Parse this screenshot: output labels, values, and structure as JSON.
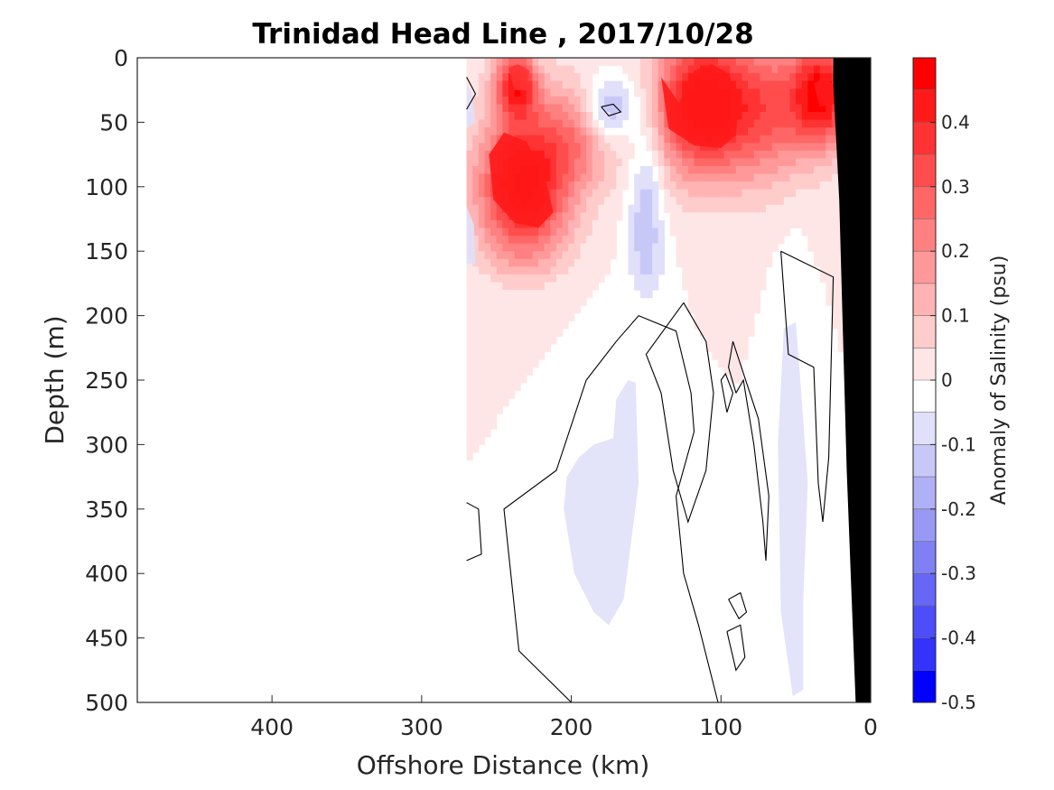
{
  "chart_data": {
    "type": "heatmap",
    "title": "Trinidad Head Line , 2017/10/28",
    "xlabel": "Offshore Distance (km)",
    "ylabel": "Depth (m)",
    "x_axis": {
      "range": [
        490,
        0
      ],
      "reversed": true,
      "ticks": [
        400,
        300,
        200,
        100,
        0
      ]
    },
    "y_axis": {
      "range": [
        0,
        500
      ],
      "reversed": true,
      "ticks": [
        0,
        50,
        100,
        150,
        200,
        250,
        300,
        350,
        400,
        450,
        500
      ]
    },
    "colorbar": {
      "label": "Anomaly of Salinity (psu)",
      "range": [
        -0.5,
        0.5
      ],
      "ticks": [
        "0.4",
        "0.3",
        "0.2",
        "0.1",
        "0",
        "-0.1",
        "-0.2",
        "-0.3",
        "-0.4",
        "-0.5"
      ],
      "tick_values": [
        0.4,
        0.3,
        0.2,
        0.1,
        0,
        -0.1,
        -0.2,
        -0.3,
        -0.4,
        -0.5
      ],
      "levels": [
        {
          "lo": 0.45,
          "hi": 0.5,
          "color": "#ff0000"
        },
        {
          "lo": 0.4,
          "hi": 0.45,
          "color": "#ff1a1a"
        },
        {
          "lo": 0.35,
          "hi": 0.4,
          "color": "#ff3333"
        },
        {
          "lo": 0.3,
          "hi": 0.35,
          "color": "#ff4d4d"
        },
        {
          "lo": 0.25,
          "hi": 0.3,
          "color": "#ff6666"
        },
        {
          "lo": 0.2,
          "hi": 0.25,
          "color": "#ff8080"
        },
        {
          "lo": 0.15,
          "hi": 0.2,
          "color": "#ff9999"
        },
        {
          "lo": 0.1,
          "hi": 0.15,
          "color": "#ffb3b3"
        },
        {
          "lo": 0.05,
          "hi": 0.1,
          "color": "#ffcccc"
        },
        {
          "lo": 0.0,
          "hi": 0.05,
          "color": "#ffe6e6"
        },
        {
          "lo": -0.05,
          "hi": 0.0,
          "color": "#ffffff"
        },
        {
          "lo": -0.1,
          "hi": -0.05,
          "color": "#e0e0fa"
        },
        {
          "lo": -0.15,
          "hi": -0.1,
          "color": "#c8c8f8"
        },
        {
          "lo": -0.2,
          "hi": -0.15,
          "color": "#b0b0f6"
        },
        {
          "lo": -0.25,
          "hi": -0.2,
          "color": "#9999f5"
        },
        {
          "lo": -0.3,
          "hi": -0.25,
          "color": "#8080f5"
        },
        {
          "lo": -0.35,
          "hi": -0.3,
          "color": "#6666f7"
        },
        {
          "lo": -0.4,
          "hi": -0.35,
          "color": "#4d4dfa"
        },
        {
          "lo": -0.45,
          "hi": -0.4,
          "color": "#3333fc"
        },
        {
          "lo": -0.5,
          "hi": -0.45,
          "color": "#0000ff"
        }
      ]
    },
    "data_extent_km": [
      270,
      0
    ],
    "bathymetry": {
      "color": "#000000",
      "x_km": [
        0,
        0,
        10,
        16,
        21,
        25,
        25
      ],
      "depth_m": [
        0,
        500,
        500,
        320,
        110,
        20,
        0
      ]
    },
    "features": [
      {
        "name": "salinity-max-nearshore-upper",
        "level": 0.4,
        "x_km": [
          140,
          128,
          118,
          106,
          95,
          88,
          90,
          100,
          118,
          135,
          140
        ],
        "depth_m": [
          15,
          35,
          10,
          5,
          12,
          35,
          60,
          70,
          68,
          55,
          15
        ]
      },
      {
        "name": "salinity-max-offshore-deep",
        "level": 0.4,
        "x_km": [
          255,
          245,
          230,
          218,
          212,
          222,
          238,
          252,
          255
        ],
        "depth_m": [
          75,
          58,
          65,
          90,
          120,
          132,
          128,
          110,
          75
        ]
      },
      {
        "name": "salinity-max-offshore-shallow",
        "level": 0.35,
        "x_km": [
          242,
          236,
          228,
          230,
          238,
          242
        ],
        "depth_m": [
          8,
          5,
          10,
          25,
          25,
          8
        ]
      },
      {
        "name": "salinity-max-coastal",
        "level": 0.4,
        "x_km": [
          38,
          30,
          22,
          25,
          34,
          38
        ],
        "depth_m": [
          20,
          15,
          25,
          35,
          38,
          20
        ]
      },
      {
        "name": "fresh-anomaly-offshore-mid",
        "level": -0.1,
        "x_km": [
          185,
          172,
          170,
          162,
          157,
          155,
          165,
          175,
          185,
          198,
          205,
          203,
          195,
          185
        ],
        "depth_m": [
          300,
          295,
          265,
          250,
          252,
          330,
          420,
          440,
          430,
          400,
          350,
          325,
          310,
          300
        ]
      },
      {
        "name": "fresh-anomaly-nearshore",
        "level": -0.1,
        "x_km": [
          58,
          50,
          47,
          42,
          45,
          45,
          52,
          60,
          62,
          58
        ],
        "depth_m": [
          210,
          205,
          250,
          330,
          420,
          490,
          495,
          430,
          300,
          210
        ]
      },
      {
        "name": "fresh-anomaly-west-edge-upper",
        "level": -0.1,
        "x_km": [
          270,
          266,
          264,
          270
        ],
        "depth_m": [
          20,
          30,
          50,
          55
        ]
      },
      {
        "name": "fresh-anomaly-west-edge-lower",
        "level": -0.1,
        "x_km": [
          270,
          265,
          264,
          270
        ],
        "depth_m": [
          115,
          130,
          160,
          160
        ]
      }
    ],
    "contour_lines": [
      {
        "name": "zero-contour-main",
        "level": 0,
        "x_km": [
          200,
          235,
          245,
          210,
          190,
          170,
          155,
          130,
          120,
          118,
          130,
          125,
          115,
          102
        ],
        "depth_m": [
          500,
          460,
          350,
          320,
          250,
          220,
          200,
          212,
          260,
          290,
          340,
          400,
          440,
          500
        ]
      },
      {
        "name": "zero-contour-central",
        "level": 0,
        "x_km": [
          125,
          110,
          105,
          110,
          122,
          132,
          140,
          150,
          125
        ],
        "depth_m": [
          190,
          220,
          260,
          320,
          360,
          320,
          260,
          230,
          190
        ]
      },
      {
        "name": "zero-contour-eel",
        "level": 0,
        "x_km": [
          90,
          85,
          78,
          72,
          70,
          68,
          75,
          92,
          95,
          90
        ],
        "depth_m": [
          260,
          250,
          300,
          360,
          390,
          340,
          280,
          220,
          240,
          260
        ]
      },
      {
        "name": "zero-contour-small-a",
        "level": 0,
        "x_km": [
          100,
          97,
          92,
          96,
          100
        ],
        "depth_m": [
          250,
          245,
          260,
          275,
          250
        ]
      },
      {
        "name": "zero-contour-nearshore-column",
        "level": 0,
        "x_km": [
          60,
          55,
          38,
          35,
          32,
          28,
          25,
          60
        ],
        "depth_m": [
          150,
          230,
          240,
          330,
          360,
          310,
          170,
          150
        ]
      },
      {
        "name": "zero-contour-west-boundary",
        "level": 0,
        "x_km": [
          270,
          262,
          260,
          270
        ],
        "depth_m": [
          345,
          350,
          385,
          390
        ]
      },
      {
        "name": "zero-contour-small-b",
        "level": 0,
        "x_km": [
          180,
          172,
          167,
          175,
          180
        ],
        "depth_m": [
          38,
          36,
          42,
          45,
          38
        ]
      },
      {
        "name": "zero-contour-deep-east",
        "level": 0,
        "x_km": [
          95,
          87,
          83,
          88,
          95
        ],
        "depth_m": [
          420,
          415,
          430,
          435,
          420
        ]
      },
      {
        "name": "zero-contour-deep-east-2",
        "level": 0,
        "x_km": [
          96,
          87,
          84,
          90,
          96
        ],
        "depth_m": [
          445,
          440,
          465,
          475,
          445
        ]
      },
      {
        "name": "zero-contour-upper-west",
        "level": 0,
        "x_km": [
          270,
          264,
          270
        ],
        "depth_m": [
          15,
          28,
          40
        ]
      }
    ]
  }
}
